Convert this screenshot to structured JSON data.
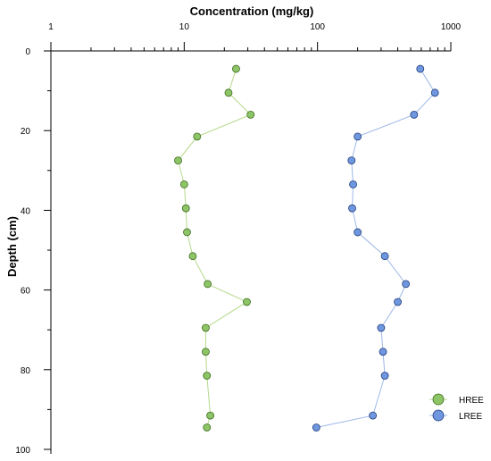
{
  "chart_data": {
    "type": "scatter",
    "title": "",
    "xlabel": "Concentration (mg/kg)",
    "ylabel": "Depth (cm)",
    "x_scale": "log",
    "x_position": "top",
    "xlim": [
      1,
      1000
    ],
    "ylim": [
      100,
      0
    ],
    "y_inverted": true,
    "x_tick_labels": [
      "1",
      "10",
      "100",
      "1000"
    ],
    "x_ticks": [
      1,
      10,
      100,
      1000
    ],
    "y_tick_labels": [
      "0",
      "20",
      "40",
      "60",
      "80",
      "100"
    ],
    "y_ticks": [
      0,
      20,
      40,
      60,
      80,
      100
    ],
    "grid": false,
    "legend_position": "bottom-right",
    "series": [
      {
        "name": "HREE",
        "color": "#8cc466",
        "line_color": "#b5d98a",
        "stroke": "#3d6b1f",
        "points": [
          {
            "x": 24.5,
            "y": 4.5
          },
          {
            "x": 21.5,
            "y": 10.5
          },
          {
            "x": 31.5,
            "y": 16
          },
          {
            "x": 12.5,
            "y": 21.5
          },
          {
            "x": 9.0,
            "y": 27.5
          },
          {
            "x": 10.0,
            "y": 33.5
          },
          {
            "x": 10.3,
            "y": 39.5
          },
          {
            "x": 10.5,
            "y": 45.5
          },
          {
            "x": 11.6,
            "y": 51.5
          },
          {
            "x": 15.0,
            "y": 58.5
          },
          {
            "x": 29.5,
            "y": 63
          },
          {
            "x": 14.5,
            "y": 69.5
          },
          {
            "x": 14.5,
            "y": 75.5
          },
          {
            "x": 14.8,
            "y": 81.5
          },
          {
            "x": 15.7,
            "y": 91.5
          },
          {
            "x": 14.8,
            "y": 94.5
          }
        ]
      },
      {
        "name": "LREE",
        "color": "#6f97e0",
        "line_color": "#9db8e8",
        "stroke": "#1f3d7a",
        "points": [
          {
            "x": 590,
            "y": 4.5
          },
          {
            "x": 760,
            "y": 10.5
          },
          {
            "x": 530,
            "y": 16
          },
          {
            "x": 200,
            "y": 21.5
          },
          {
            "x": 180,
            "y": 27.5
          },
          {
            "x": 185,
            "y": 33.5
          },
          {
            "x": 182,
            "y": 39.5
          },
          {
            "x": 200,
            "y": 45.5
          },
          {
            "x": 320,
            "y": 51.5
          },
          {
            "x": 460,
            "y": 58.5
          },
          {
            "x": 400,
            "y": 63
          },
          {
            "x": 300,
            "y": 69.5
          },
          {
            "x": 310,
            "y": 75.5
          },
          {
            "x": 320,
            "y": 81.5
          },
          {
            "x": 260,
            "y": 91.5
          },
          {
            "x": 98,
            "y": 94.5
          }
        ]
      }
    ]
  }
}
